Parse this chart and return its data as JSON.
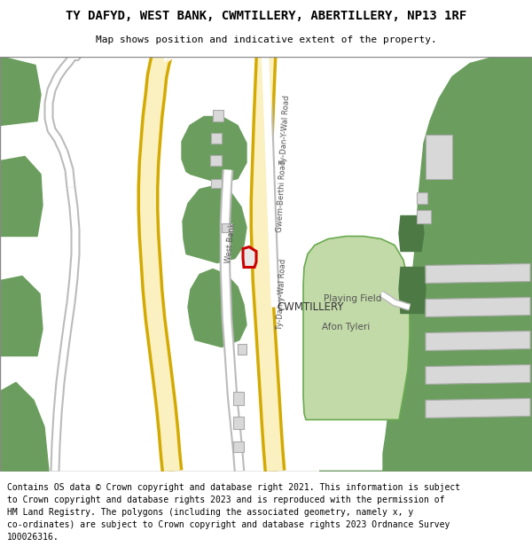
{
  "title": "TY DAFYD, WEST BANK, CWMTILLERY, ABERTILLERY, NP13 1RF",
  "subtitle": "Map shows position and indicative extent of the property.",
  "footer": "Contains OS data © Crown copyright and database right 2021. This information is subject to Crown copyright and database rights 2023 and is reproduced with the permission of\nHM Land Registry. The polygons (including the associated geometry, namely x, y\nco-ordinates) are subject to Crown copyright and database rights 2023 Ordnance Survey\n100026316.",
  "bg_green": "#6b9e5e",
  "road_yellow_fill": "#faf0c0",
  "road_yellow_edge": "#d4aa00",
  "road_white_fill": "#ffffff",
  "road_gray_edge": "#bbbbbb",
  "building_fill": "#d8d8d8",
  "building_edge": "#aaaaaa",
  "playing_field_fill": "#c2d9a8",
  "playing_field_edge": "#6aaa50",
  "dark_green_bld": "#4d7a44",
  "plot_edge": "#cc0000",
  "plot_fill": "#e8e8e8",
  "white": "#ffffff",
  "text_dark": "#444444",
  "text_place": "#333333"
}
